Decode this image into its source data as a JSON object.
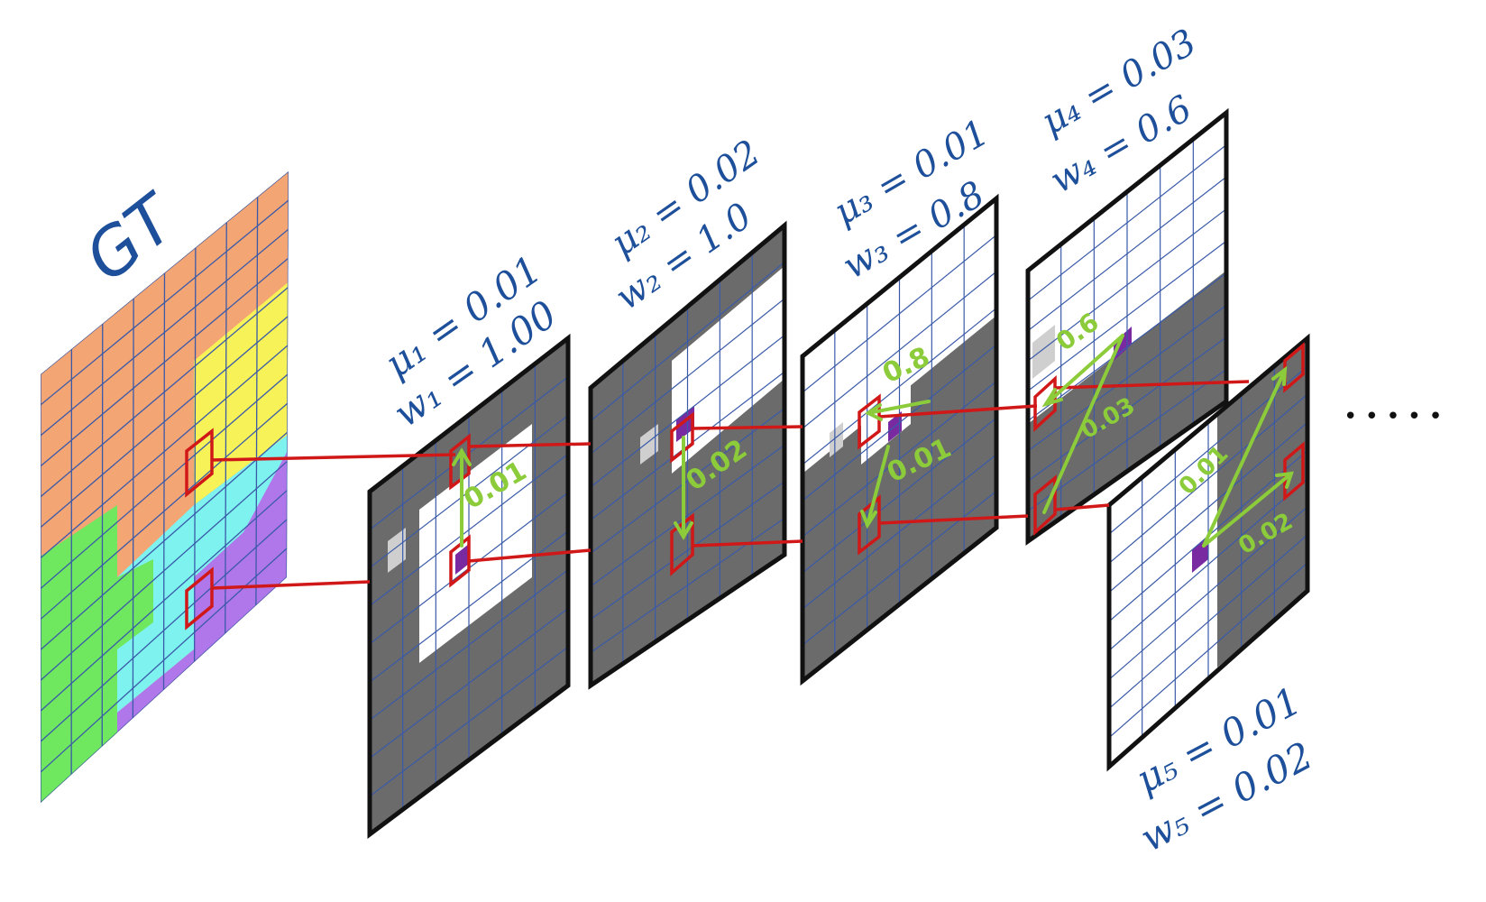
{
  "gt_label": "GT",
  "ellipsis": "• • • • •",
  "layers": [
    {
      "id": 1,
      "mu_label": "μ₁ = 0.01",
      "w_label": "w₁ = 1.00",
      "edge_value": "0.01"
    },
    {
      "id": 2,
      "mu_label": "μ₂ = 0.02",
      "w_label": "w₂ = 1.0",
      "edge_value": "0.02"
    },
    {
      "id": 3,
      "mu_label": "μ₃ = 0.01",
      "w_label": "w₃ = 0.8",
      "edge_values": [
        "0.8",
        "0.01"
      ]
    },
    {
      "id": 4,
      "mu_label": "μ₄ = 0.03",
      "w_label": "w₄ = 0.6",
      "edge_values": [
        "0.6",
        "0.03"
      ]
    },
    {
      "id": 5,
      "mu_label": "μ₅ = 0.01",
      "w_label": "w₅ = 0.02",
      "edge_values": [
        "0.01",
        "0.02"
      ]
    }
  ],
  "colors": {
    "ink_blue": "#1d4f9a",
    "edge_green": "#8ccc3a",
    "link_red": "#d01818",
    "pixel_purple": "#7a2aa0",
    "layer_dark": "#6b6b6b",
    "gt_orange": "#f4a574",
    "gt_yellow": "#f7f257",
    "gt_cyan": "#7ef2ef",
    "gt_green": "#6fe85f",
    "gt_purple": "#b077ea"
  }
}
